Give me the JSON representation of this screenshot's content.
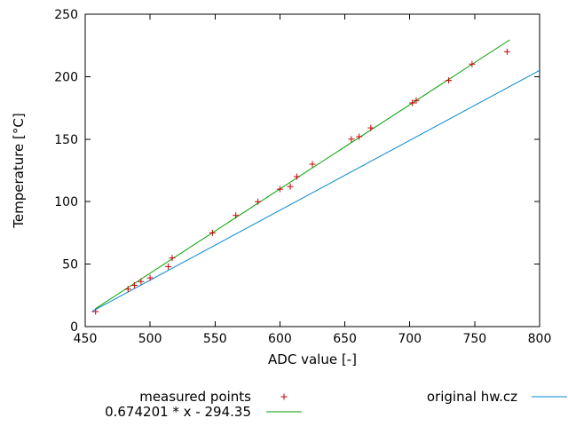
{
  "chart_data": {
    "type": "scatter",
    "title": "",
    "xlabel": "ADC value [-]",
    "ylabel": "Temperature [°C]",
    "xlim": [
      450,
      800
    ],
    "ylim": [
      0,
      250
    ],
    "xticks": [
      450,
      500,
      550,
      600,
      650,
      700,
      750,
      800
    ],
    "yticks": [
      0,
      50,
      100,
      150,
      200,
      250
    ],
    "grid": false,
    "legend_position": "below-plot",
    "frame_color": "#000000",
    "series": [
      {
        "name": "measured points",
        "type": "points",
        "marker": "plus",
        "color": "#cc0000",
        "points": [
          [
            458,
            12
          ],
          [
            483,
            30
          ],
          [
            488,
            33
          ],
          [
            493,
            36
          ],
          [
            500,
            39
          ],
          [
            514,
            48
          ],
          [
            517,
            55
          ],
          [
            548,
            75
          ],
          [
            566,
            89
          ],
          [
            583,
            100
          ],
          [
            600,
            110
          ],
          [
            608,
            112
          ],
          [
            613,
            120
          ],
          [
            625,
            130
          ],
          [
            655,
            150
          ],
          [
            661,
            152
          ],
          [
            670,
            159
          ],
          [
            702,
            179
          ],
          [
            705,
            181
          ],
          [
            730,
            197
          ],
          [
            748,
            210
          ],
          [
            775,
            220
          ]
        ]
      },
      {
        "name": "0.674201 * x - 294.35",
        "type": "line",
        "color": "#00a000",
        "slope": 0.674201,
        "intercept": -294.35,
        "points": [
          [
            458,
            14.4
          ],
          [
            777,
            229.5
          ]
        ]
      },
      {
        "name": "original hw.cz",
        "type": "line",
        "color": "#0088cc",
        "points": [
          [
            455,
            12
          ],
          [
            800,
            205
          ]
        ]
      }
    ]
  }
}
